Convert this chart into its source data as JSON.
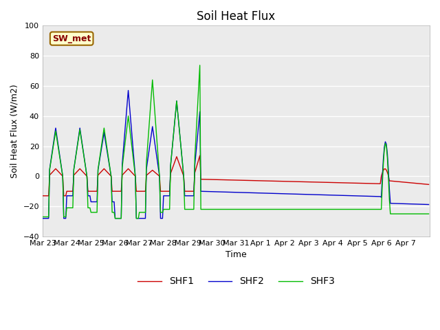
{
  "title": "Soil Heat Flux",
  "ylabel": "Soil Heat Flux (W/m2)",
  "xlabel": "Time",
  "ylim": [
    -40,
    100
  ],
  "xlim": [
    0,
    16
  ],
  "background_color": "#ffffff",
  "plot_bg_color": "#ebebeb",
  "grid_color": "#ffffff",
  "annotation_text": "SW_met",
  "annotation_bg": "#ffffcc",
  "annotation_border": "#996600",
  "line_colors": {
    "SHF1": "#cc0000",
    "SHF2": "#0000cc",
    "SHF3": "#00bb00"
  },
  "legend_labels": [
    "SHF1",
    "SHF2",
    "SHF3"
  ],
  "yticks": [
    -40,
    -20,
    0,
    20,
    40,
    60,
    80,
    100
  ],
  "tick_labels": [
    "Mar 23",
    "Mar 24",
    "Mar 25",
    "Mar 26",
    "Mar 27",
    "Mar 28",
    "Mar 29",
    "Mar 30",
    "Mar 31",
    "Apr 1",
    "Apr 2",
    "Apr 3",
    "Apr 4",
    "Apr 5",
    "Apr 6",
    "Apr 7"
  ],
  "title_fontsize": 12,
  "ylabel_fontsize": 9,
  "xlabel_fontsize": 9,
  "tick_fontsize": 8
}
